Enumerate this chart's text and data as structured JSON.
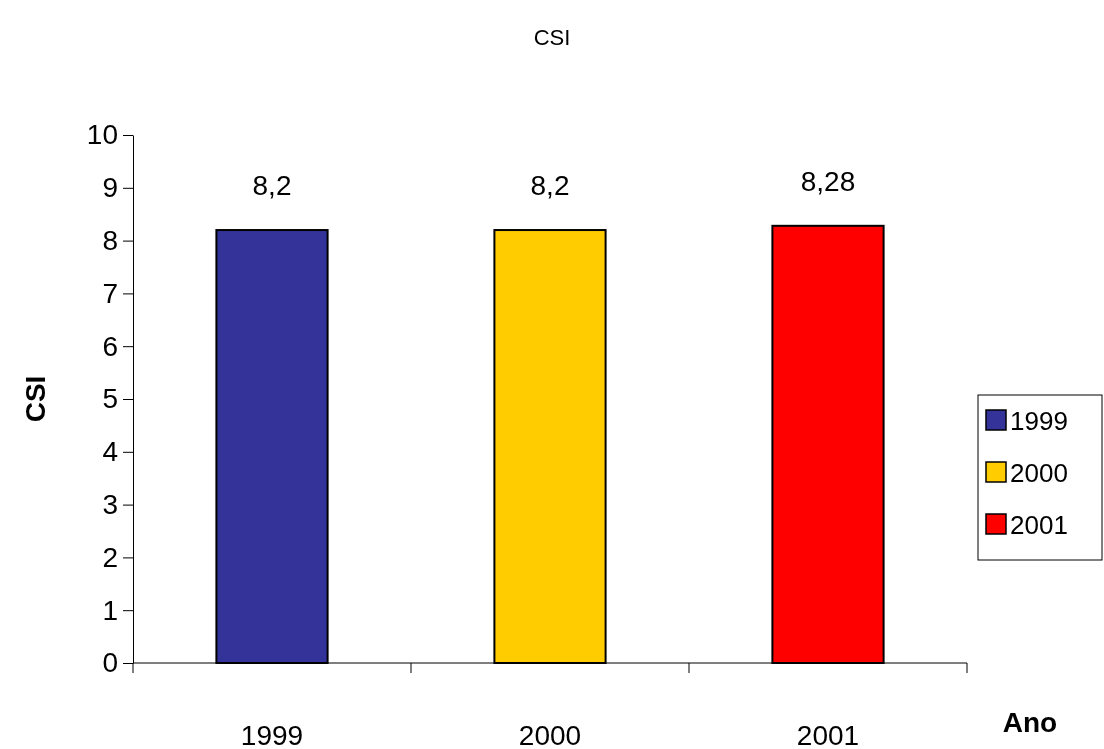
{
  "chart_data": {
    "type": "bar",
    "title": "CSI",
    "xlabel": "Ano",
    "ylabel": "CSI",
    "categories": [
      "1999",
      "2000",
      "2001"
    ],
    "series": [
      {
        "name": "1999",
        "color": "#333399",
        "values": [
          8.2,
          null,
          null
        ],
        "value_labels": [
          "8,2",
          null,
          null
        ]
      },
      {
        "name": "2000",
        "color": "#ffcc00",
        "values": [
          null,
          8.2,
          null
        ],
        "value_labels": [
          null,
          "8,2",
          null
        ]
      },
      {
        "name": "2001",
        "color": "#ff0000",
        "values": [
          null,
          null,
          8.28
        ],
        "value_labels": [
          null,
          null,
          "8,28"
        ]
      }
    ],
    "ylim": [
      0,
      10
    ],
    "yticks": [
      0,
      1,
      2,
      3,
      4,
      5,
      6,
      7,
      8,
      9,
      10
    ],
    "grid": false,
    "legend": "right"
  }
}
